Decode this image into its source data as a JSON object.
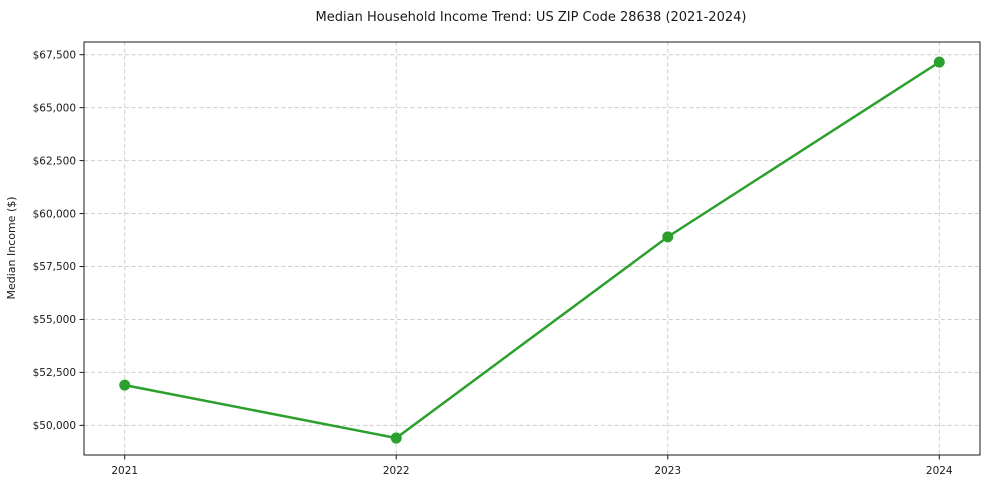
{
  "chart_data": {
    "type": "line",
    "title": "Median Household Income Trend: US ZIP Code 28638 (2021-2024)",
    "xlabel": "",
    "ylabel": "Median Income ($)",
    "x": [
      2021,
      2022,
      2023,
      2024
    ],
    "x_tick_labels": [
      "2021",
      "2022",
      "2023",
      "2024"
    ],
    "series": [
      {
        "values": [
          51900,
          49400,
          58900,
          67150
        ],
        "color": "#2ca02c",
        "marker": "circle",
        "marker_radius": 5.5,
        "line_width": 2.5
      }
    ],
    "y_tick_values": [
      50000,
      52500,
      55000,
      57500,
      60000,
      62500,
      65000,
      67500
    ],
    "y_tick_labels": [
      "$50,000",
      "$52,500",
      "$55,000",
      "$57,500",
      "$60,000",
      "$62,500",
      "$65,000",
      "$67,500"
    ],
    "xlim": [
      2020.85,
      2024.15
    ],
    "ylim": [
      48600,
      68100
    ],
    "grid": true,
    "grid_style": "dashed",
    "grid_color": "#cfcfcf",
    "spine_color": "#1a1a1a",
    "background": "#ffffff",
    "legend": "none"
  }
}
